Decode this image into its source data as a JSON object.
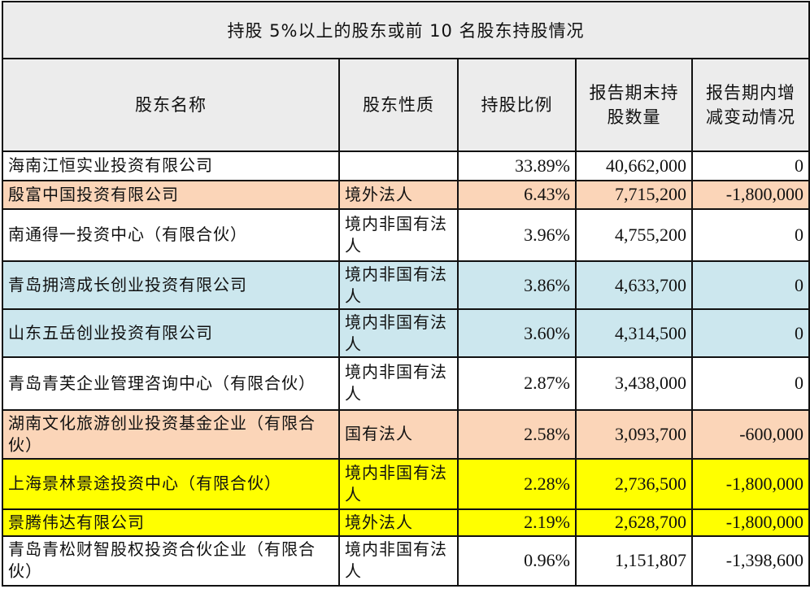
{
  "table": {
    "title": "持股 5%以上的股东或前 10 名股东持股情况",
    "columns": [
      "股东名称",
      "股东性质",
      "持股比例",
      "报告期末持股数量",
      "报告期内增减变动情况"
    ],
    "rows": [
      {
        "name": "海南江恒实业投资有限公司",
        "nature": "",
        "ratio": "33.89%",
        "shares": "40,662,000",
        "change": "0",
        "highlight": "none"
      },
      {
        "name": "殷富中国投资有限公司",
        "nature": "境外法人",
        "ratio": "6.43%",
        "shares": "7,715,200",
        "change": "-1,800,000",
        "highlight": "peach"
      },
      {
        "name": "南通得一投资中心（有限合伙）",
        "nature": "境内非国有法人",
        "ratio": "3.96%",
        "shares": "4,755,200",
        "change": "0",
        "highlight": "none"
      },
      {
        "name": "青岛拥湾成长创业投资有限公司",
        "nature": "境内非国有法人",
        "ratio": "3.86%",
        "shares": "4,633,700",
        "change": "0",
        "highlight": "blue"
      },
      {
        "name": "山东五岳创业投资有限公司",
        "nature": "境内非国有法人",
        "ratio": "3.60%",
        "shares": "4,314,500",
        "change": "0",
        "highlight": "blue"
      },
      {
        "name": "青岛青芙企业管理咨询中心（有限合伙）",
        "nature": "境内非国有法人",
        "ratio": "2.87%",
        "shares": "3,438,000",
        "change": "0",
        "highlight": "none"
      },
      {
        "name": "湖南文化旅游创业投资基金企业（有限合伙）",
        "nature": "国有法人",
        "ratio": "2.58%",
        "shares": "3,093,700",
        "change": "-600,000",
        "highlight": "peach"
      },
      {
        "name": "上海景林景途投资中心（有限合伙）",
        "nature": "境内非国有法人",
        "ratio": "2.28%",
        "shares": "2,736,500",
        "change": "-1,800,000",
        "highlight": "yellow"
      },
      {
        "name": "景腾伟达有限公司",
        "nature": "境外法人",
        "ratio": "2.19%",
        "shares": "2,628,700",
        "change": "-1,800,000",
        "highlight": "yellow"
      },
      {
        "name": "青岛青松财智股权投资合伙企业（有限合伙）",
        "nature": "境内非国有法人",
        "ratio": "0.96%",
        "shares": "1,151,807",
        "change": "-1,398,600",
        "highlight": "none"
      }
    ]
  },
  "colors": {
    "header_bg": "#ececec",
    "peach": "#fbd5b8",
    "blue": "#cce7ee",
    "yellow": "#ffff00",
    "border": "#111111"
  }
}
